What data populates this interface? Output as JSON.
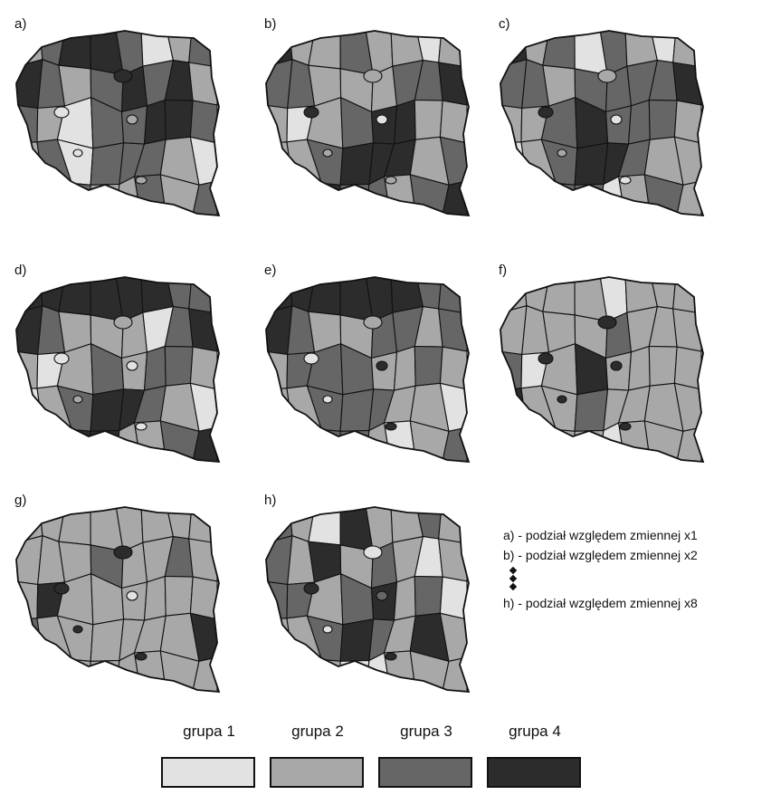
{
  "colors": {
    "grupa_1": "#e2e2e2",
    "grupa_2": "#a8a8a8",
    "grupa_3": "#666666",
    "grupa_4": "#2c2c2c",
    "border": "#111111"
  },
  "panels": [
    {
      "id": "a",
      "label": "a)",
      "pattern": [
        1,
        2,
        3,
        3,
        2,
        0,
        1,
        2,
        3,
        2,
        1,
        2,
        3,
        2,
        3,
        1,
        2,
        1,
        0,
        2,
        2,
        3,
        3,
        2,
        1,
        2,
        0,
        2,
        2,
        2,
        1,
        0,
        2,
        3,
        2,
        1,
        1,
        2,
        1,
        2
      ]
    },
    {
      "id": "b",
      "label": "b)",
      "pattern": [
        3,
        1,
        1,
        2,
        1,
        1,
        0,
        1,
        2,
        2,
        1,
        1,
        1,
        2,
        2,
        3,
        1,
        0,
        1,
        2,
        3,
        3,
        1,
        1,
        1,
        1,
        2,
        3,
        3,
        3,
        1,
        2,
        2,
        3,
        3,
        2,
        2,
        1,
        2,
        3
      ]
    },
    {
      "id": "c",
      "label": "c)",
      "pattern": [
        3,
        1,
        2,
        0,
        2,
        1,
        0,
        1,
        2,
        2,
        1,
        2,
        2,
        2,
        2,
        3,
        1,
        1,
        2,
        3,
        2,
        2,
        2,
        1,
        0,
        1,
        2,
        3,
        3,
        2,
        1,
        1,
        2,
        3,
        2,
        2,
        0,
        1,
        2,
        1
      ]
    },
    {
      "id": "d",
      "label": "d)",
      "pattern": [
        3,
        3,
        3,
        3,
        3,
        3,
        2,
        2,
        3,
        2,
        1,
        1,
        1,
        0,
        2,
        3,
        1,
        0,
        1,
        2,
        1,
        2,
        2,
        1,
        0,
        1,
        2,
        3,
        3,
        2,
        1,
        0,
        1,
        2,
        3,
        3,
        1,
        1,
        2,
        3
      ]
    },
    {
      "id": "e",
      "label": "e)",
      "pattern": [
        3,
        3,
        3,
        3,
        3,
        3,
        2,
        2,
        3,
        2,
        1,
        1,
        2,
        2,
        1,
        2,
        1,
        2,
        2,
        2,
        1,
        1,
        2,
        1,
        1,
        1,
        2,
        2,
        2,
        1,
        1,
        0,
        0,
        1,
        2,
        2,
        1,
        0,
        1,
        2
      ]
    },
    {
      "id": "f",
      "label": "f)",
      "pattern": [
        1,
        1,
        1,
        1,
        0,
        1,
        1,
        1,
        1,
        1,
        1,
        1,
        2,
        1,
        1,
        1,
        2,
        0,
        1,
        3,
        1,
        1,
        1,
        1,
        3,
        1,
        1,
        2,
        1,
        1,
        1,
        1,
        3,
        1,
        1,
        1,
        0,
        1,
        1,
        1
      ]
    },
    {
      "id": "g",
      "label": "g)",
      "pattern": [
        1,
        1,
        1,
        1,
        1,
        1,
        1,
        1,
        1,
        1,
        1,
        2,
        1,
        1,
        2,
        1,
        1,
        3,
        1,
        1,
        1,
        1,
        1,
        1,
        2,
        1,
        1,
        1,
        1,
        1,
        1,
        3,
        1,
        3,
        1,
        1,
        1,
        1,
        1,
        1
      ]
    },
    {
      "id": "h",
      "label": "h)",
      "pattern": [
        2,
        1,
        0,
        3,
        1,
        1,
        2,
        1,
        2,
        1,
        3,
        1,
        2,
        1,
        0,
        1,
        2,
        2,
        1,
        2,
        3,
        1,
        2,
        0,
        1,
        1,
        2,
        3,
        2,
        1,
        3,
        1,
        1,
        0,
        1,
        0,
        0,
        1,
        1,
        1
      ]
    }
  ],
  "notes": {
    "line_a": "a) - podział względem zmiennej x1",
    "line_b": "b) - podział względem zmiennej x2",
    "line_h": "h) - podział względem zmiennej x8"
  },
  "legend": [
    {
      "label": "grupa 1",
      "color": "#e2e2e2"
    },
    {
      "label": "grupa 2",
      "color": "#a8a8a8"
    },
    {
      "label": "grupa 3",
      "color": "#666666"
    },
    {
      "label": "grupa 4",
      "color": "#2c2c2c"
    }
  ]
}
